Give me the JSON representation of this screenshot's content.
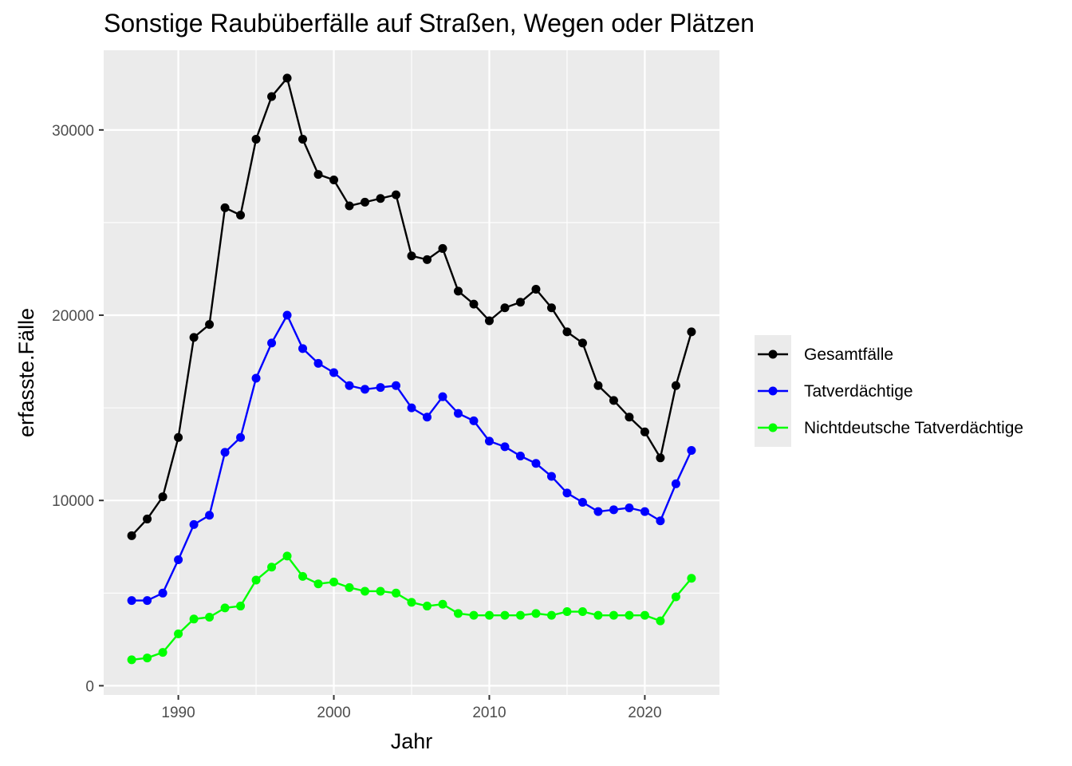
{
  "chart_data": {
    "type": "line",
    "title": "Sonstige Raubüberfälle auf Straßen, Wegen oder Plätzen",
    "xlabel": "Jahr",
    "ylabel": "erfasste.Fälle",
    "x": [
      1987,
      1988,
      1989,
      1990,
      1991,
      1992,
      1993,
      1994,
      1995,
      1996,
      1997,
      1998,
      1999,
      2000,
      2001,
      2002,
      2003,
      2004,
      2005,
      2006,
      2007,
      2008,
      2009,
      2010,
      2011,
      2012,
      2013,
      2014,
      2015,
      2016,
      2017,
      2018,
      2019,
      2020,
      2021,
      2022,
      2023
    ],
    "xlim": [
      1985.2,
      2024.8
    ],
    "ylim": [
      -500,
      34300
    ],
    "x_ticks": [
      1990,
      2000,
      2010,
      2020
    ],
    "y_ticks": [
      0,
      10000,
      20000,
      30000
    ],
    "grid": true,
    "legend_position": "right",
    "series": [
      {
        "name": "Gesamtfälle",
        "color": "#000000",
        "values": [
          8100,
          9000,
          10200,
          13400,
          18800,
          19500,
          25800,
          25400,
          29500,
          31800,
          32800,
          29500,
          27600,
          27300,
          25900,
          26100,
          26300,
          26500,
          23200,
          23000,
          23600,
          21300,
          20600,
          19700,
          20400,
          20700,
          21400,
          20400,
          19100,
          18500,
          16200,
          15400,
          14500,
          13700,
          12300,
          16200,
          19100
        ]
      },
      {
        "name": "Tatverdächtige",
        "color": "#0000ff",
        "values": [
          4600,
          4600,
          5000,
          6800,
          8700,
          9200,
          12600,
          13400,
          16600,
          18500,
          20000,
          18200,
          17400,
          16900,
          16200,
          16000,
          16100,
          16200,
          15000,
          14500,
          15600,
          14700,
          14300,
          13200,
          12900,
          12400,
          12000,
          11300,
          10400,
          9900,
          9400,
          9500,
          9600,
          9400,
          8900,
          10900,
          12700
        ]
      },
      {
        "name": "Nichtdeutsche Tatverdächtige",
        "color": "#00ff00",
        "values": [
          1400,
          1500,
          1800,
          2800,
          3600,
          3700,
          4200,
          4300,
          5700,
          6400,
          7000,
          5900,
          5500,
          5600,
          5300,
          5100,
          5100,
          5000,
          4500,
          4300,
          4400,
          3900,
          3800,
          3800,
          3800,
          3800,
          3900,
          3800,
          4000,
          4000,
          3800,
          3800,
          3800,
          3800,
          3500,
          4800,
          5800
        ]
      }
    ]
  }
}
